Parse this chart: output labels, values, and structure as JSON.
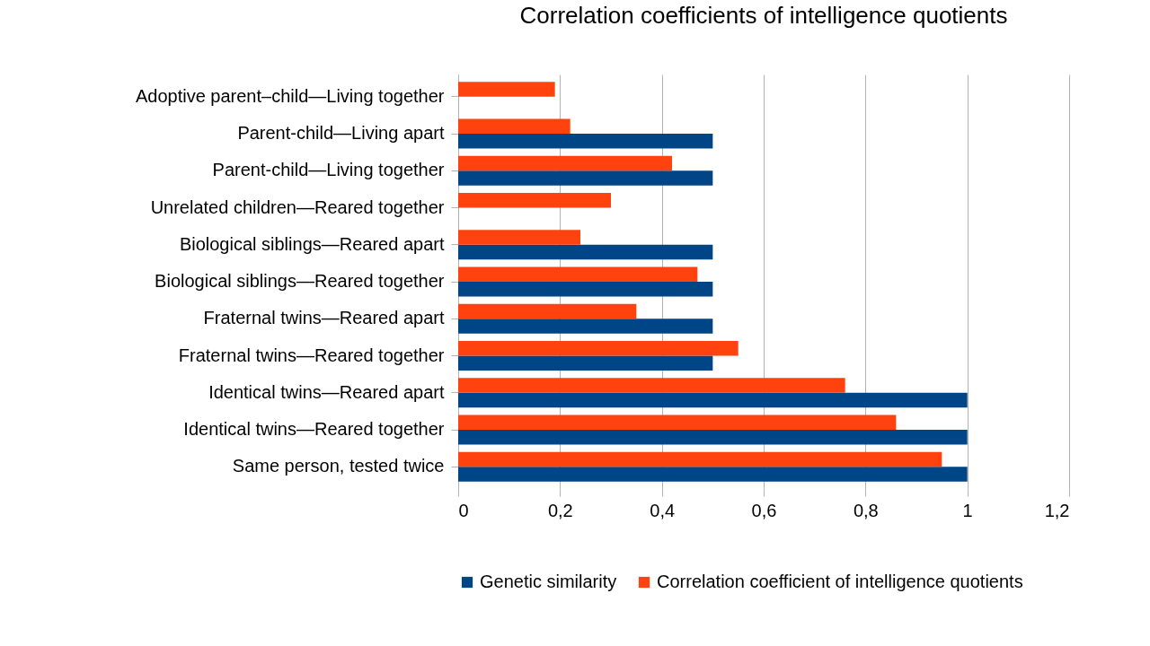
{
  "chart_data": {
    "type": "bar",
    "orientation": "horizontal",
    "title": "Correlation coefficients of intelligence quotients",
    "categories": [
      "Adoptive parent–child—Living together",
      "Parent-child—Living apart",
      "Parent-child—Living together",
      "Unrelated children—Reared together",
      "Biological siblings—Reared apart",
      "Biological siblings—Reared together",
      "Fraternal twins—Reared apart",
      "Fraternal twins—Reared together",
      "Identical twins—Reared apart",
      "Identical twins—Reared together",
      "Same person, tested twice"
    ],
    "series": [
      {
        "name": "Genetic similarity",
        "color": "#004586",
        "values": [
          null,
          0.5,
          0.5,
          null,
          0.5,
          0.5,
          0.5,
          0.5,
          1,
          1,
          1
        ]
      },
      {
        "name": "Correlation coefficient of intelligence quotients",
        "color": "#ff420e",
        "values": [
          0.19,
          0.22,
          0.42,
          0.3,
          0.24,
          0.47,
          0.35,
          0.55,
          0.76,
          0.86,
          0.95
        ]
      }
    ],
    "xlim": [
      0,
      1.2
    ],
    "xticks": [
      0,
      {
        "value": 0.2,
        "label": "0,2"
      },
      {
        "value": 0.4,
        "label": "0,4"
      },
      {
        "value": 0.6,
        "label": "0,6"
      },
      {
        "value": 0.8,
        "label": "0,8"
      },
      1,
      {
        "value": 1.2,
        "label": "1,2"
      }
    ],
    "grid": "x",
    "legend": "bottom"
  }
}
